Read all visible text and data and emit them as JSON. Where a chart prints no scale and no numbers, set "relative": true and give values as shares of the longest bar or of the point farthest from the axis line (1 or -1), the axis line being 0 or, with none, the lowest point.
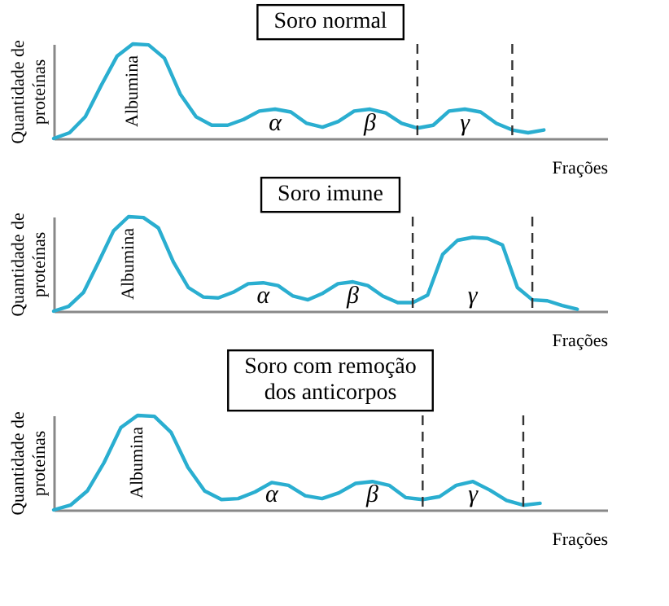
{
  "chart_data": [
    {
      "type": "line",
      "title": "Soro normal",
      "xlabel": "Frações",
      "ylabel": "Quantidade de\nproteínas",
      "relative": true,
      "categories": [
        null,
        null,
        null,
        null,
        null,
        null,
        null,
        null,
        null,
        null,
        null,
        null,
        null,
        null,
        null,
        null,
        null,
        null,
        null,
        null,
        null,
        null,
        null,
        null,
        null,
        null,
        null,
        null,
        null,
        null,
        null,
        null,
        null,
        null,
        null,
        null
      ],
      "series": [
        {
          "color": "#2aaed0",
          "values": [
            0,
            0.06,
            0.23,
            0.56,
            0.87,
            1.0,
            0.99,
            0.85,
            0.47,
            0.23,
            0.14,
            0.14,
            0.2,
            0.29,
            0.31,
            0.28,
            0.16,
            0.12,
            0.18,
            0.29,
            0.31,
            0.27,
            0.16,
            0.11,
            0.14,
            0.29,
            0.31,
            0.28,
            0.16,
            0.09,
            0.06,
            0.09,
            null,
            null,
            null,
            null
          ]
        }
      ],
      "annotations": [
        "Albumina",
        "α",
        "β",
        "γ"
      ]
    },
    {
      "type": "line",
      "title": "Soro imune",
      "xlabel": "Frações",
      "ylabel": "Quantidade de\nproteínas",
      "relative": true,
      "categories": [
        null,
        null,
        null,
        null,
        null,
        null,
        null,
        null,
        null,
        null,
        null,
        null,
        null,
        null,
        null,
        null,
        null,
        null,
        null,
        null,
        null,
        null,
        null,
        null,
        null,
        null,
        null,
        null,
        null,
        null,
        null,
        null,
        null,
        null,
        null,
        null,
        null,
        null
      ],
      "series": [
        {
          "color": "#2aaed0",
          "values": [
            0,
            0.05,
            0.2,
            0.52,
            0.85,
            1.0,
            0.99,
            0.88,
            0.52,
            0.25,
            0.15,
            0.14,
            0.2,
            0.29,
            0.3,
            0.27,
            0.16,
            0.12,
            0.19,
            0.29,
            0.31,
            0.27,
            0.16,
            0.09,
            0.09,
            0.17,
            0.6,
            0.75,
            0.78,
            0.77,
            0.7,
            0.25,
            0.12,
            0.11,
            0.06,
            0.02,
            null,
            null
          ]
        }
      ],
      "annotations": [
        "Albumina",
        "α",
        "β",
        "γ"
      ]
    },
    {
      "type": "line",
      "title": "Soro com remoção\ndos anticorpos",
      "xlabel": "Frações",
      "ylabel": "Quantidade de\nproteínas",
      "relative": true,
      "categories": [
        null,
        null,
        null,
        null,
        null,
        null,
        null,
        null,
        null,
        null,
        null,
        null,
        null,
        null,
        null,
        null,
        null,
        null,
        null,
        null,
        null,
        null,
        null,
        null,
        null,
        null,
        null,
        null,
        null,
        null,
        null,
        null,
        null,
        null
      ],
      "series": [
        {
          "color": "#2aaed0",
          "values": [
            0,
            0.05,
            0.2,
            0.5,
            0.87,
            1.0,
            0.99,
            0.82,
            0.45,
            0.2,
            0.11,
            0.12,
            0.19,
            0.29,
            0.26,
            0.15,
            0.12,
            0.18,
            0.28,
            0.3,
            0.26,
            0.13,
            0.11,
            0.14,
            0.26,
            0.3,
            0.21,
            0.1,
            0.05,
            0.07,
            null,
            null,
            null,
            null
          ]
        }
      ],
      "annotations": [
        "Albumina",
        "α",
        "β",
        "γ"
      ]
    }
  ]
}
